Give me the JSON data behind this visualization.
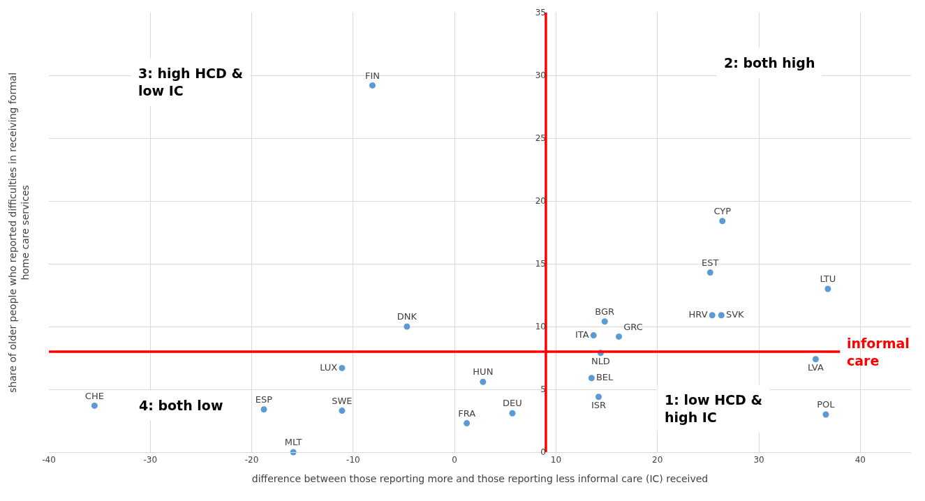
{
  "chart_data": {
    "type": "scatter",
    "xlabel": "difference between those reporting more and those reporting less informal care (IC) received",
    "ylabel": "share of older people who reported difficulties in receiving formal home care services",
    "xlim": [
      -40,
      45
    ],
    "ylim": [
      0,
      35
    ],
    "xticks": [
      -40,
      -30,
      -20,
      -10,
      0,
      10,
      20,
      30,
      40
    ],
    "yticks": [
      0,
      5,
      10,
      15,
      20,
      25,
      30,
      35
    ],
    "grid": true,
    "marker": "circle",
    "series": [
      {
        "color": "#5b9bd5",
        "x": [
          -8.1,
          -4.7,
          -35.5,
          -18.8,
          -11.1,
          -11.1,
          -15.9,
          1.2,
          2.8,
          5.7,
          13.7,
          14.8,
          16.2,
          14.4,
          13.5,
          14.2,
          26.4,
          25.2,
          36.8,
          25.4,
          26.3,
          35.6,
          36.6
        ],
        "values": [
          29.2,
          10.0,
          3.7,
          3.4,
          3.3,
          6.7,
          0,
          2.3,
          5.6,
          3.1,
          9.3,
          10.4,
          9.2,
          7.9,
          5.9,
          4.4,
          18.4,
          14.3,
          13.0,
          10.9,
          10.9,
          7.4,
          3.0
        ],
        "value_labels": [
          "FIN",
          "DNK",
          "CHE",
          "ESP",
          "SWE",
          "LUX",
          "MLT",
          "FRA",
          "HUN",
          "DEU",
          "ITA",
          "BGR",
          "GRC",
          "NLD",
          "BEL",
          "ISR",
          "CYP",
          "EST",
          "LTU",
          "HRV",
          "SVK",
          "LVA",
          "POL"
        ]
      },
      {
        "type": "line",
        "name": "informal care",
        "marker": "none",
        "color": "#ff0000",
        "x": [
          -40,
          38
        ],
        "values": [
          8,
          8
        ]
      },
      {
        "type": "line",
        "marker": "none",
        "color": "#ff0000",
        "x": [
          9,
          9
        ],
        "values": [
          0,
          35
        ]
      }
    ],
    "annotations": [
      "3: high HCD & low IC",
      "2: both high",
      "4: both low",
      "1: low HCD & high IC"
    ]
  }
}
